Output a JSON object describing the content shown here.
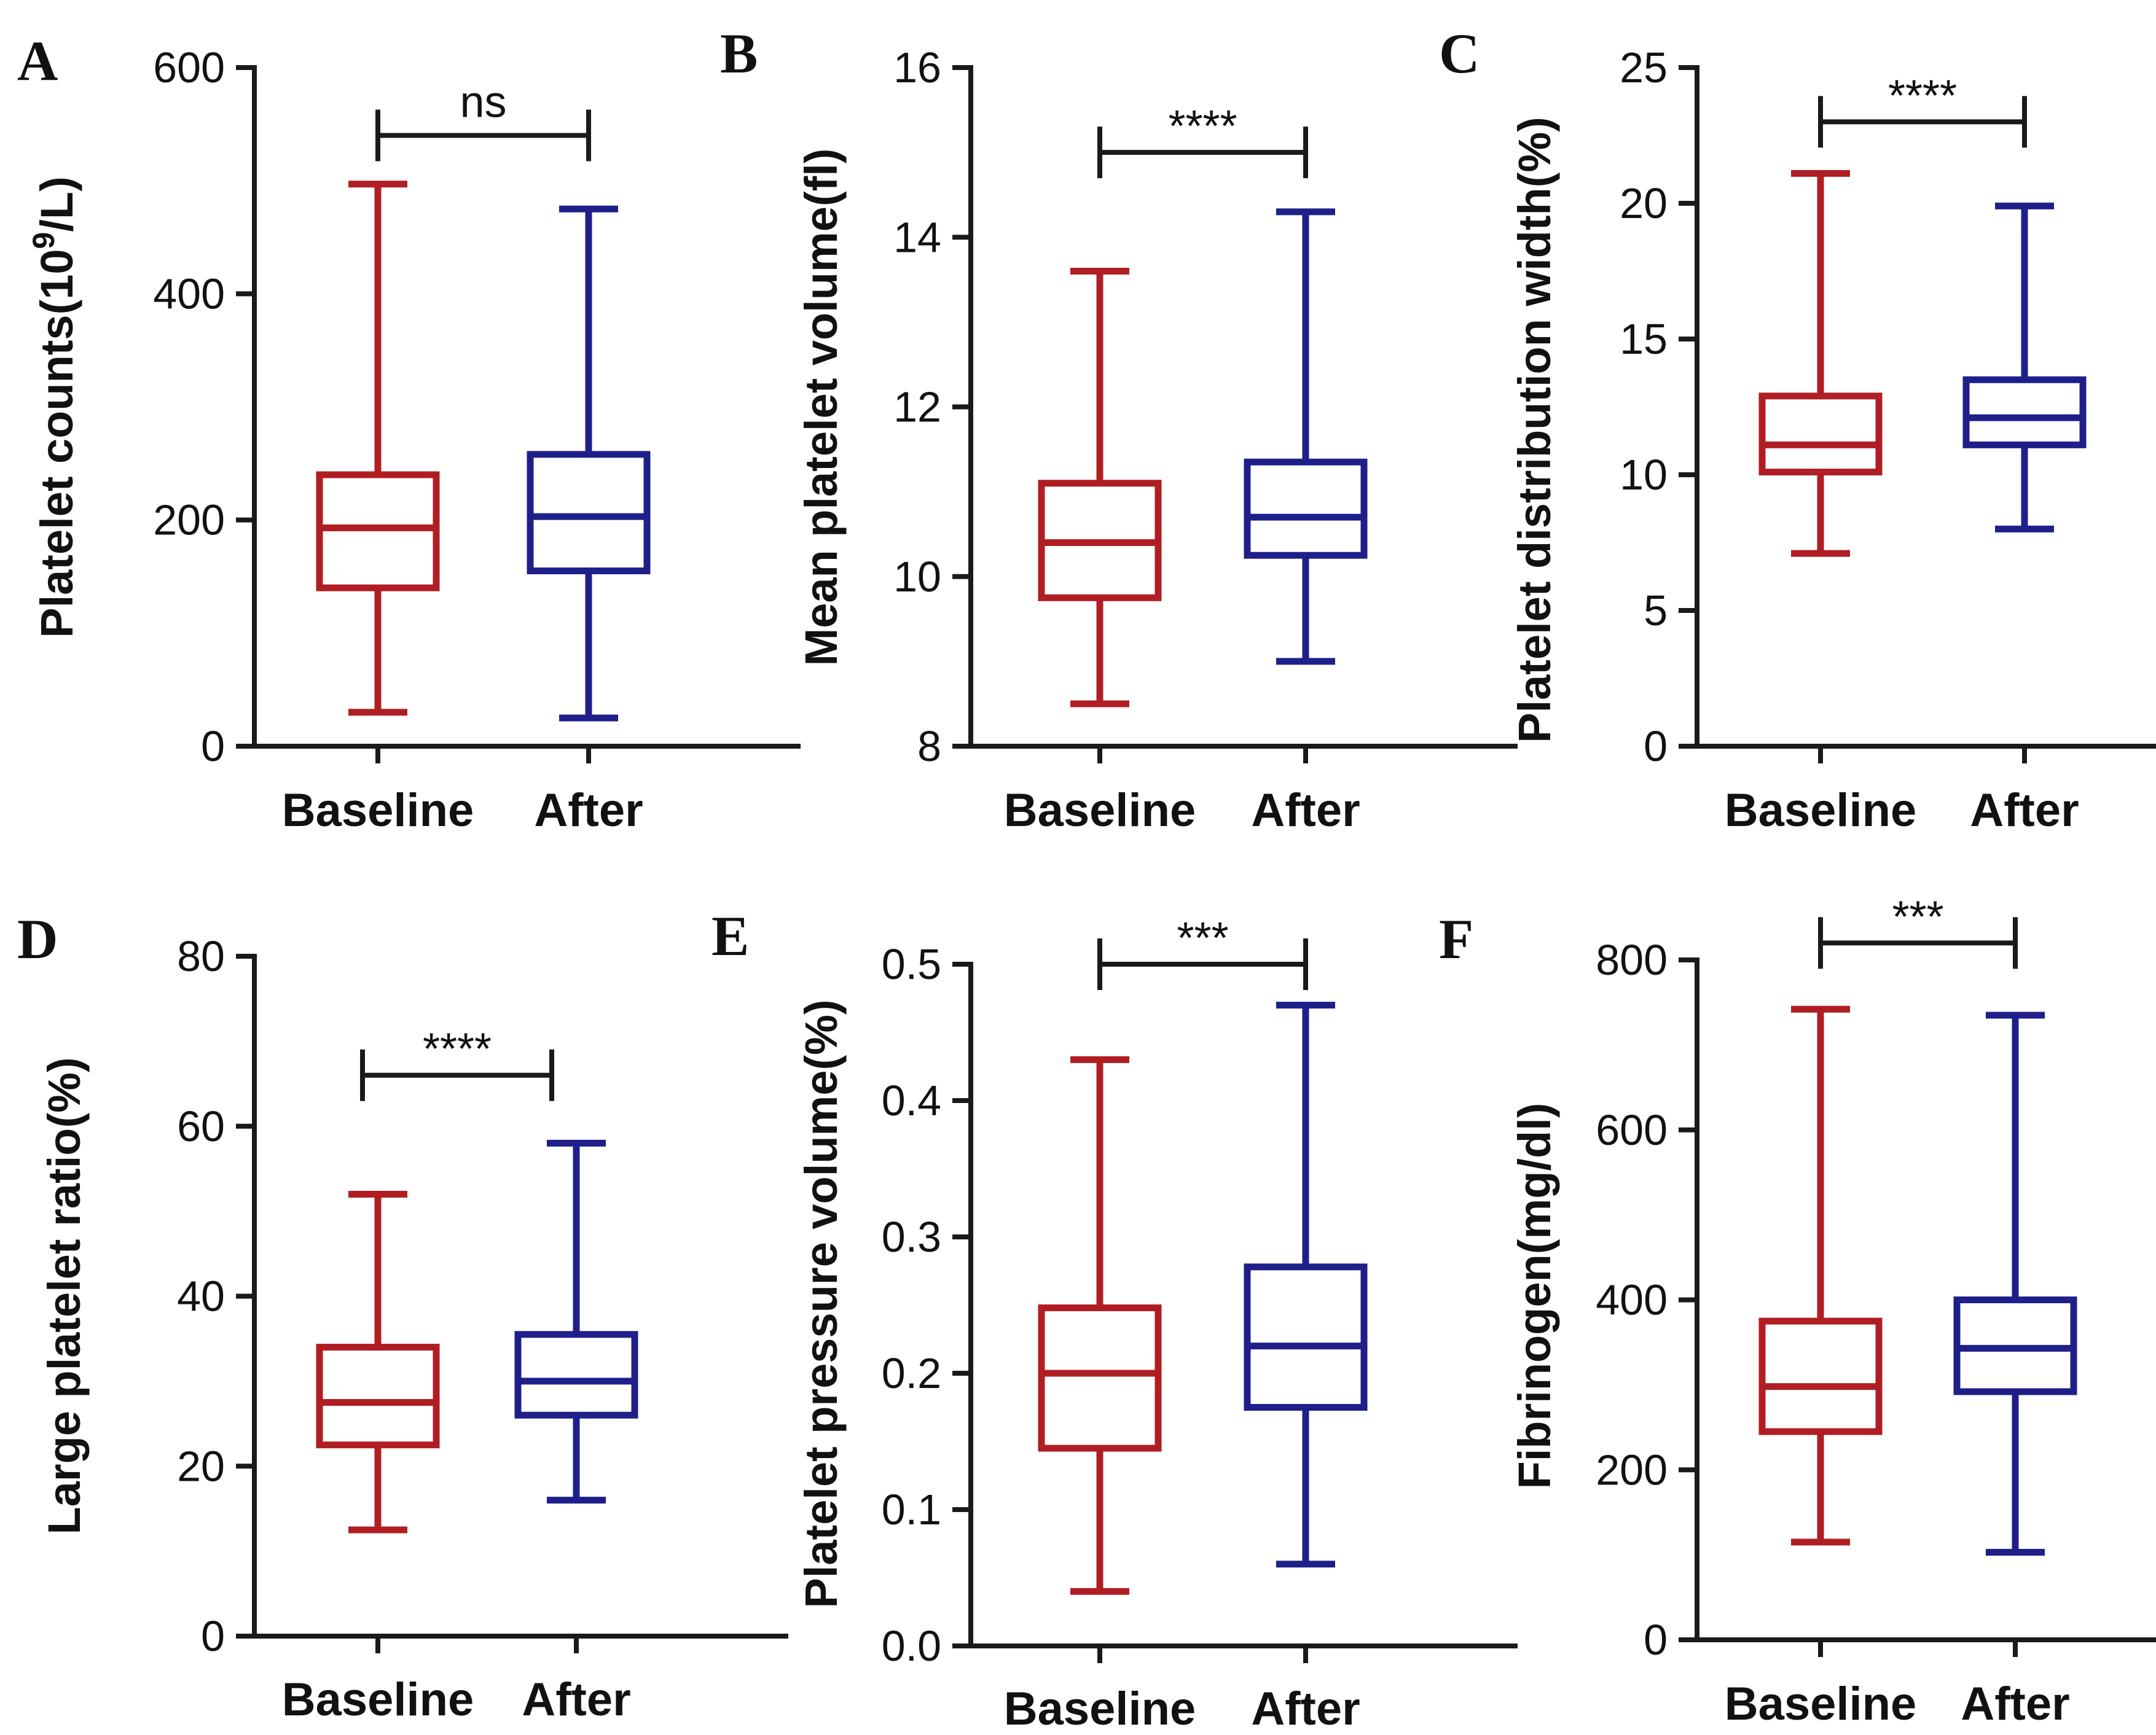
{
  "colors": {
    "baseline": "#b01e23",
    "after": "#1f1f8a",
    "axis": "#1a1a1a"
  },
  "chart_data": [
    {
      "panel": "A",
      "type": "box",
      "ylabel": "Platelet counts(10",
      "ylabel_sup": "9",
      "ylabel_tail": "/L)",
      "ylim": [
        0,
        600
      ],
      "yticks": [
        0,
        200,
        400,
        600
      ],
      "ytick_labels": [
        "0",
        "200",
        "400",
        "600"
      ],
      "categories": [
        "Baseline",
        "After"
      ],
      "series": [
        {
          "name": "Baseline",
          "min": 30,
          "q1": 140,
          "median": 193,
          "q3": 240,
          "max": 497
        },
        {
          "name": "After",
          "min": 25,
          "q1": 155,
          "median": 203,
          "q3": 258,
          "max": 475
        }
      ],
      "significance": {
        "label": "ns",
        "y": 540
      }
    },
    {
      "panel": "B",
      "type": "box",
      "ylabel": "Mean platelet volume(fl)",
      "ylim": [
        8,
        16
      ],
      "yticks": [
        8,
        10,
        12,
        14,
        16
      ],
      "ytick_labels": [
        "8",
        "10",
        "12",
        "14",
        "16"
      ],
      "categories": [
        "Baseline",
        "After"
      ],
      "series": [
        {
          "name": "Baseline",
          "min": 8.5,
          "q1": 9.75,
          "median": 10.4,
          "q3": 11.1,
          "max": 13.6
        },
        {
          "name": "After",
          "min": 9.0,
          "q1": 10.25,
          "median": 10.7,
          "q3": 11.35,
          "max": 14.3
        }
      ],
      "significance": {
        "label": "****",
        "y": 15.0
      }
    },
    {
      "panel": "C",
      "type": "box",
      "ylabel": "Platelet  distribution width(%)",
      "ylim": [
        0,
        25
      ],
      "yticks": [
        0,
        5,
        10,
        15,
        20,
        25
      ],
      "ytick_labels": [
        "0",
        "5",
        "10",
        "15",
        "20",
        "25"
      ],
      "categories": [
        "Baseline",
        "After"
      ],
      "series": [
        {
          "name": "Baseline",
          "min": 7.1,
          "q1": 10.1,
          "median": 11.1,
          "q3": 12.9,
          "max": 21.1
        },
        {
          "name": "After",
          "min": 8.0,
          "q1": 11.1,
          "median": 12.1,
          "q3": 13.5,
          "max": 19.9
        }
      ],
      "significance": {
        "label": "****",
        "y": 23.0
      }
    },
    {
      "panel": "D",
      "type": "box",
      "ylabel": "Large platelet ratio(%)",
      "ylim": [
        0,
        80
      ],
      "yticks": [
        0,
        20,
        40,
        60,
        80
      ],
      "ytick_labels": [
        "0",
        "20",
        "40",
        "60",
        "80"
      ],
      "categories": [
        "Baseline",
        "After"
      ],
      "series": [
        {
          "name": "Baseline",
          "min": 12.5,
          "q1": 22.5,
          "median": 27.5,
          "q3": 34.0,
          "max": 52.0
        },
        {
          "name": "After",
          "min": 16.0,
          "q1": 26.0,
          "median": 30.0,
          "q3": 35.5,
          "max": 58.0
        }
      ],
      "significance": {
        "label": "****",
        "y": 66.0
      }
    },
    {
      "panel": "E",
      "type": "box",
      "ylabel": "Platelet pressure volume(%)",
      "ylim": [
        0.0,
        0.5
      ],
      "yticks": [
        0.0,
        0.1,
        0.2,
        0.3,
        0.4,
        0.5
      ],
      "ytick_labels": [
        "0.0",
        "0.1",
        "0.2",
        "0.3",
        "0.4",
        "0.5"
      ],
      "categories": [
        "Baseline",
        "After"
      ],
      "series": [
        {
          "name": "Baseline",
          "min": 0.04,
          "q1": 0.145,
          "median": 0.2,
          "q3": 0.248,
          "max": 0.43
        },
        {
          "name": "After",
          "min": 0.06,
          "q1": 0.175,
          "median": 0.22,
          "q3": 0.278,
          "max": 0.47
        }
      ],
      "significance": {
        "label": "***",
        "y": 0.5
      }
    },
    {
      "panel": "F",
      "type": "box",
      "ylabel": "Fibrinogen(mg/dl)",
      "ylim": [
        0,
        800
      ],
      "yticks": [
        0,
        200,
        400,
        600,
        800
      ],
      "ytick_labels": [
        "0",
        "200",
        "400",
        "600",
        "800"
      ],
      "categories": [
        "Baseline",
        "After"
      ],
      "series": [
        {
          "name": "Baseline",
          "min": 115,
          "q1": 245,
          "median": 298,
          "q3": 375,
          "max": 742
        },
        {
          "name": "After",
          "min": 103,
          "q1": 292,
          "median": 343,
          "q3": 400,
          "max": 735
        }
      ],
      "significance": {
        "label": "***",
        "y": 820
      }
    }
  ]
}
